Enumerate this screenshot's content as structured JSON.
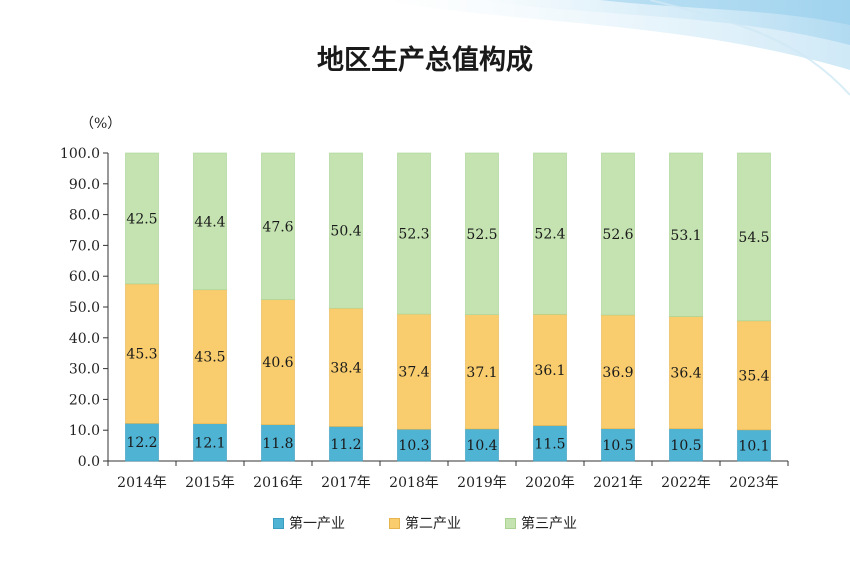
{
  "title": "地区生产总值构成",
  "unit": "（%）",
  "colors": {
    "primary": "#4fb3d4",
    "secondary": "#f9cd6e",
    "tertiary": "#c4e3b1"
  },
  "chart_data": {
    "type": "bar",
    "stacked": true,
    "categories": [
      "2014年",
      "2015年",
      "2016年",
      "2017年",
      "2018年",
      "2019年",
      "2020年",
      "2021年",
      "2022年",
      "2023年"
    ],
    "series": [
      {
        "name": "第一产业",
        "values": [
          12.2,
          12.1,
          11.8,
          11.2,
          10.3,
          10.4,
          11.5,
          10.5,
          10.5,
          10.1
        ]
      },
      {
        "name": "第二产业",
        "values": [
          45.3,
          43.5,
          40.6,
          38.4,
          37.4,
          37.1,
          36.1,
          36.9,
          36.4,
          35.4
        ]
      },
      {
        "name": "第三产业",
        "values": [
          42.5,
          44.4,
          47.6,
          50.4,
          52.3,
          52.5,
          52.4,
          52.6,
          53.1,
          54.5
        ]
      }
    ],
    "yticks": [
      "0.0",
      "10.0",
      "20.0",
      "30.0",
      "40.0",
      "50.0",
      "60.0",
      "70.0",
      "80.0",
      "90.0",
      "100.0"
    ],
    "ylim": [
      0,
      100
    ],
    "legend_position": "bottom",
    "grid": false
  }
}
